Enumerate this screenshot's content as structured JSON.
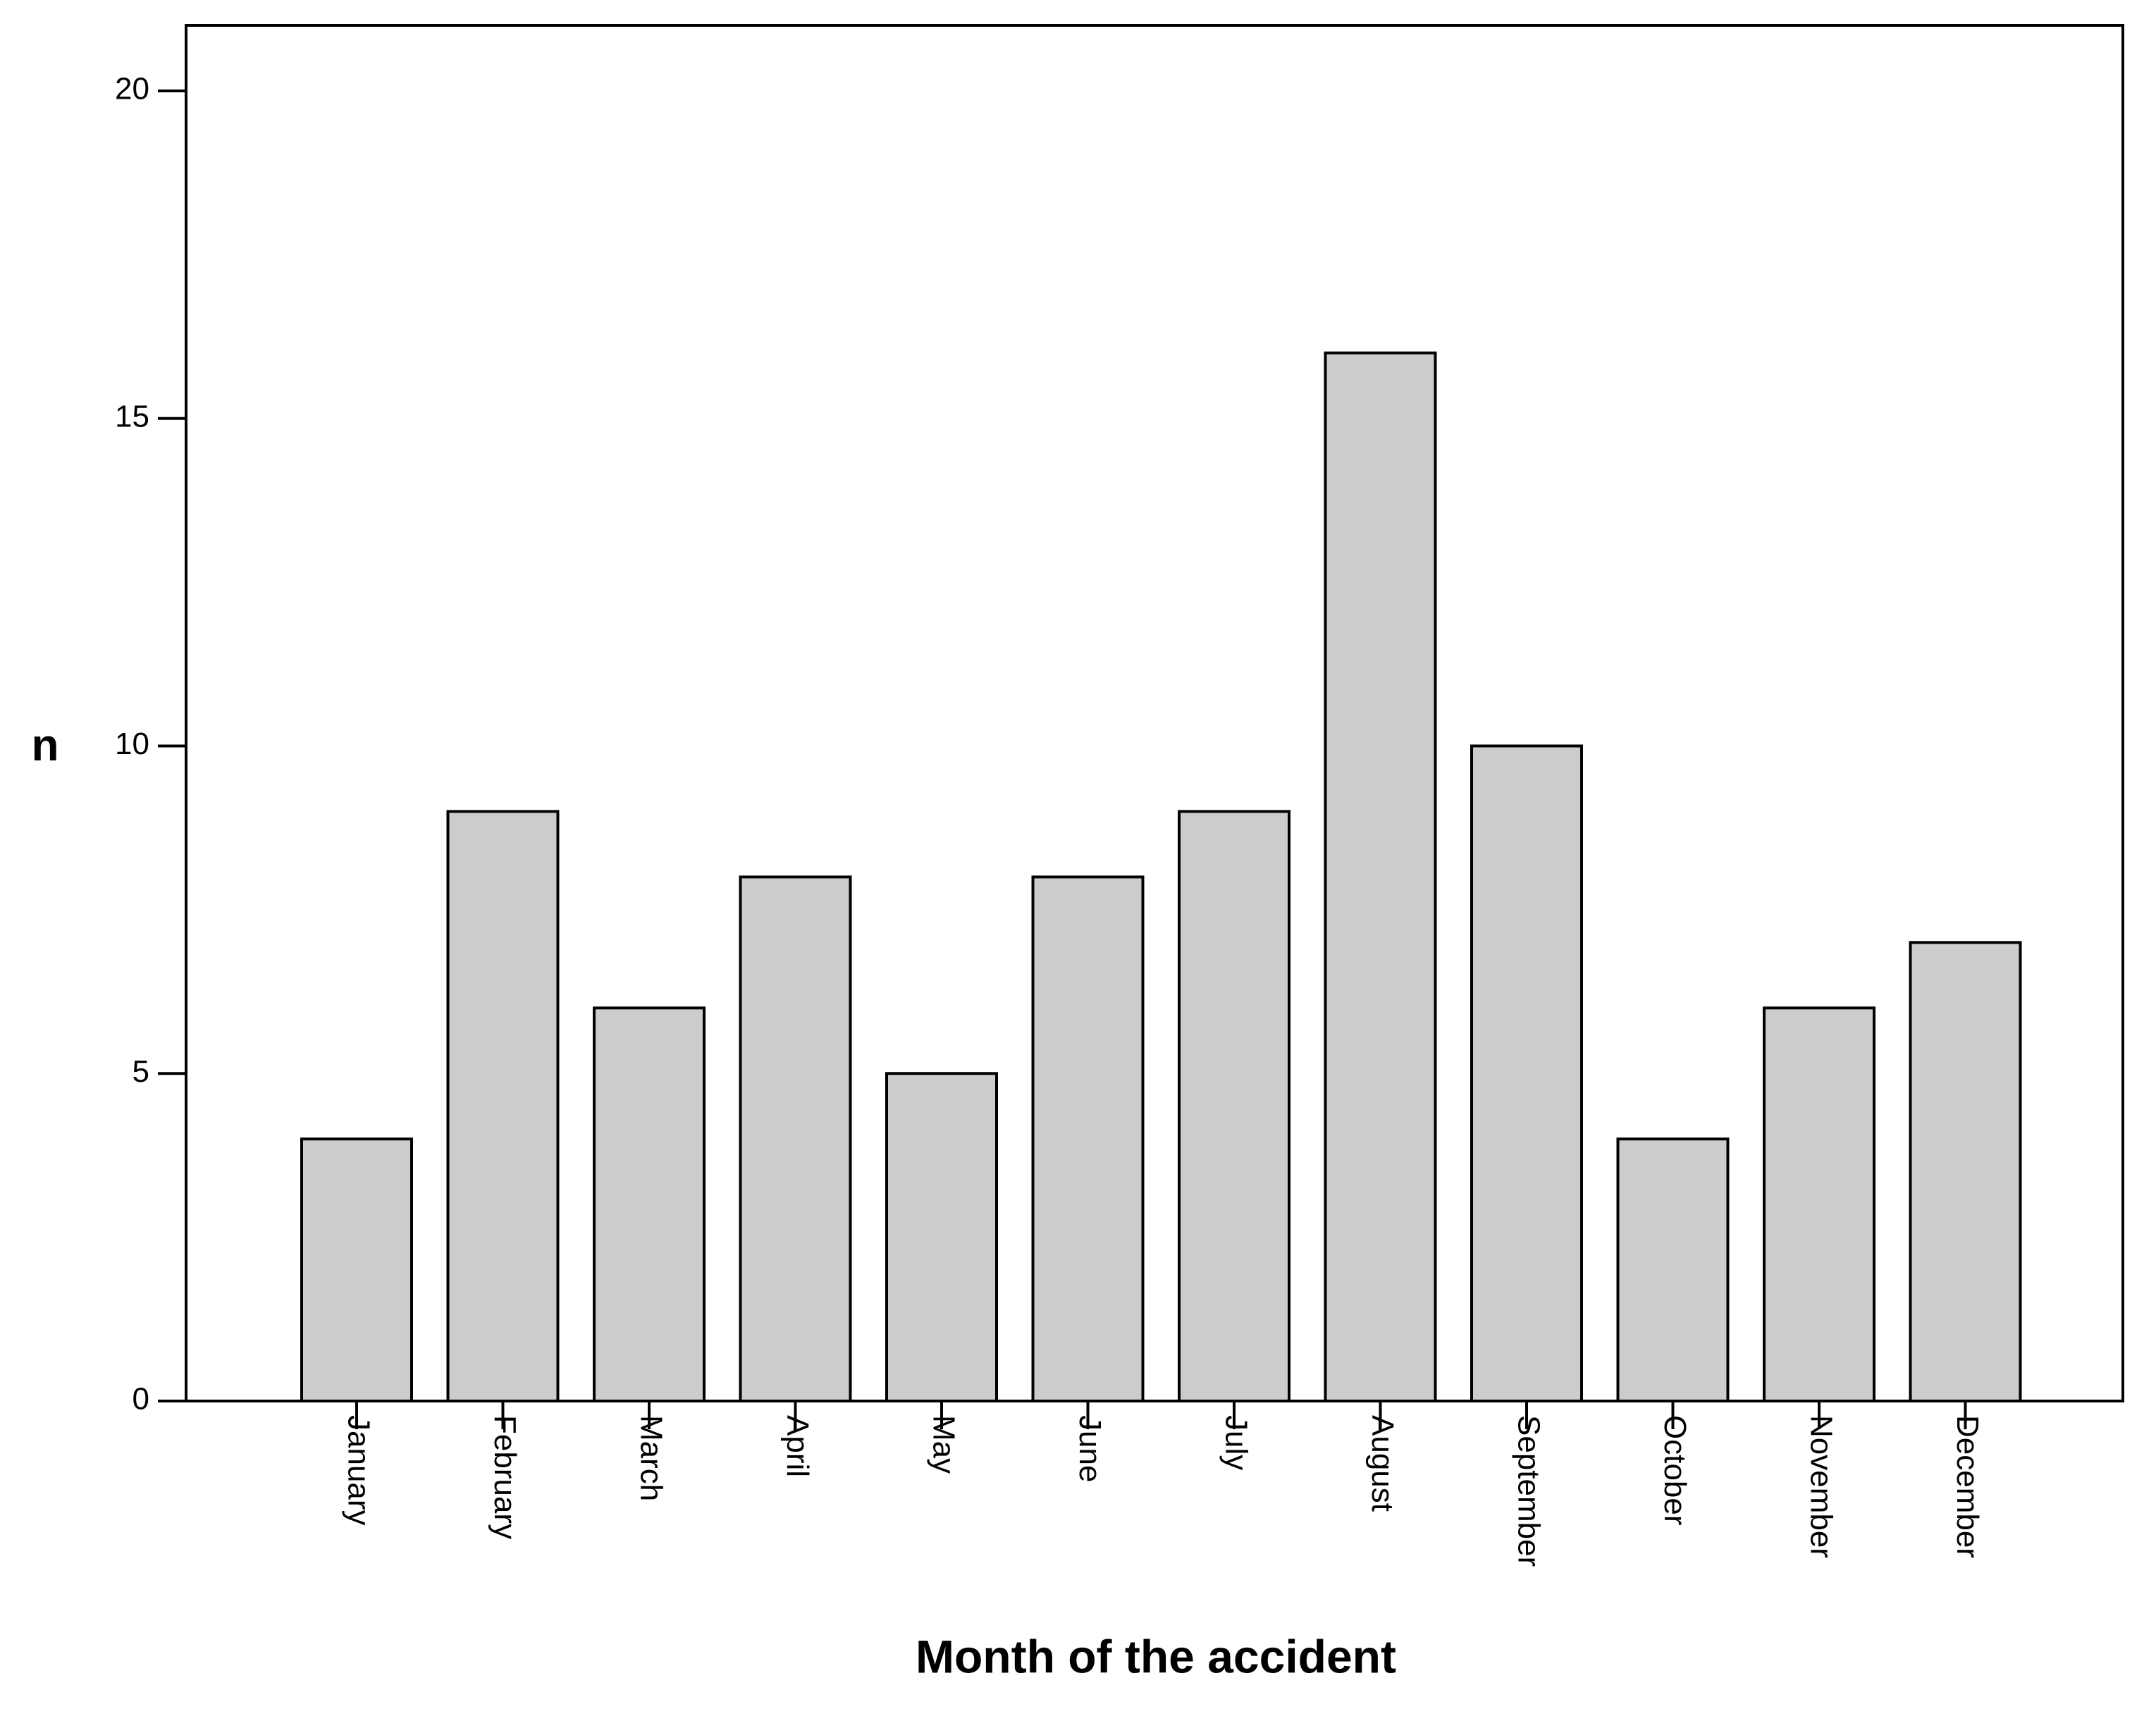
{
  "chart_data": {
    "type": "bar",
    "title": "",
    "xlabel": "Month of the accident",
    "ylabel": "n",
    "categories": [
      "January",
      "February",
      "March",
      "April",
      "May",
      "June",
      "July",
      "August",
      "September",
      "October",
      "November",
      "December"
    ],
    "values": [
      4,
      9,
      6,
      8,
      5,
      8,
      9,
      16,
      10,
      4,
      6,
      7
    ],
    "ylim": [
      0,
      21
    ],
    "yticks": [
      "0",
      "5",
      "10",
      "15",
      "20"
    ],
    "grid": false,
    "legend": "none",
    "colors": {
      "bar_fill": "#cccccc",
      "bar_stroke": "#000000",
      "axis": "#000000",
      "background": "#ffffff"
    }
  }
}
